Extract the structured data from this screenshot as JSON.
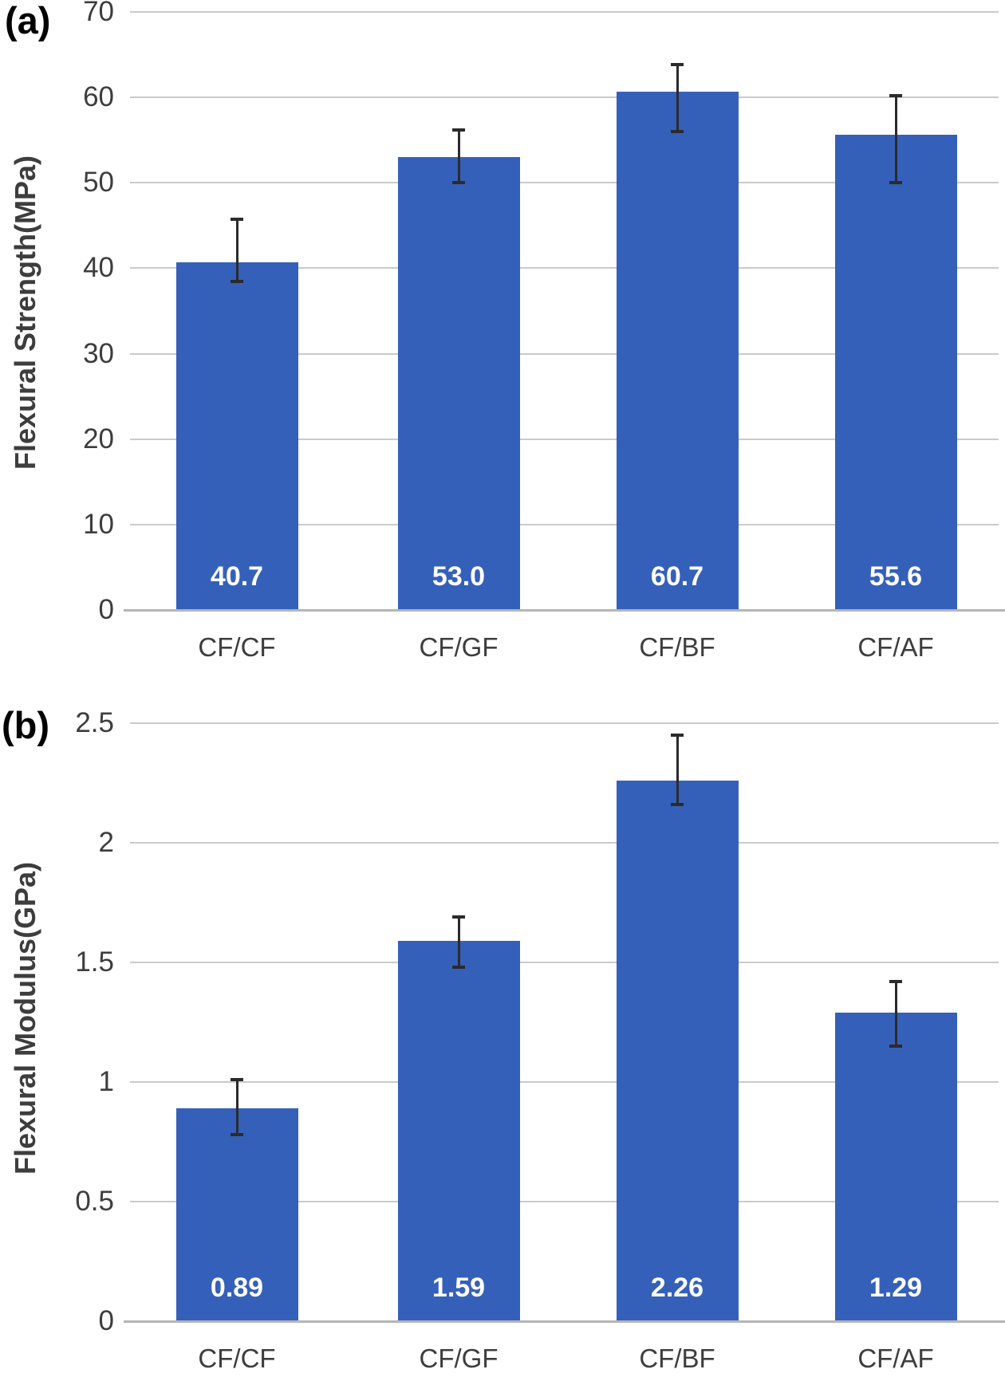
{
  "figure": {
    "background_color": "#ffffff",
    "bar_color": "#3560BA",
    "gridline_color": "#cacaca",
    "axis_line_color": "#b5b5b5",
    "error_bar_color": "#2b2b2b",
    "text_color": "#3d3d3d",
    "value_label_color": "#ffffff"
  },
  "chart_data": [
    {
      "type": "bar",
      "panel_label": "(a)",
      "title": "",
      "xlabel": "",
      "ylabel": "Flexural Strength(MPa)",
      "categories": [
        "CF/CF",
        "CF/GF",
        "CF/BF",
        "CF/AF"
      ],
      "values": [
        40.7,
        53.0,
        60.7,
        55.6
      ],
      "data_labels": [
        "40.7",
        "53.0",
        "60.7",
        "55.6"
      ],
      "error_bars": {
        "upper": [
          45.7,
          56.2,
          63.8,
          60.2
        ],
        "lower": [
          38.5,
          50.0,
          56.0,
          50.0
        ]
      },
      "ylim": [
        0,
        70
      ],
      "yticks": [
        0,
        10,
        20,
        30,
        40,
        50,
        60,
        70
      ],
      "ytick_labels": [
        "0",
        "10",
        "20",
        "30",
        "40",
        "50",
        "60",
        "70"
      ],
      "grid": true,
      "legend": false,
      "bar_color": "#3560BA"
    },
    {
      "type": "bar",
      "panel_label": "(b)",
      "title": "",
      "xlabel": "",
      "ylabel": "Flexural Modulus(GPa)",
      "categories": [
        "CF/CF",
        "CF/GF",
        "CF/BF",
        "CF/AF"
      ],
      "values": [
        0.89,
        1.59,
        2.26,
        1.29
      ],
      "data_labels": [
        "0.89",
        "1.59",
        "2.26",
        "1.29"
      ],
      "error_bars": {
        "upper": [
          1.01,
          1.69,
          2.45,
          1.42
        ],
        "lower": [
          0.78,
          1.48,
          2.16,
          1.15
        ]
      },
      "ylim": [
        0,
        2.5
      ],
      "yticks": [
        0,
        0.5,
        1,
        1.5,
        2,
        2.5
      ],
      "ytick_labels": [
        "0",
        "0.5",
        "1",
        "1.5",
        "2",
        "2.5"
      ],
      "grid": true,
      "legend": false,
      "bar_color": "#3560BA"
    }
  ]
}
